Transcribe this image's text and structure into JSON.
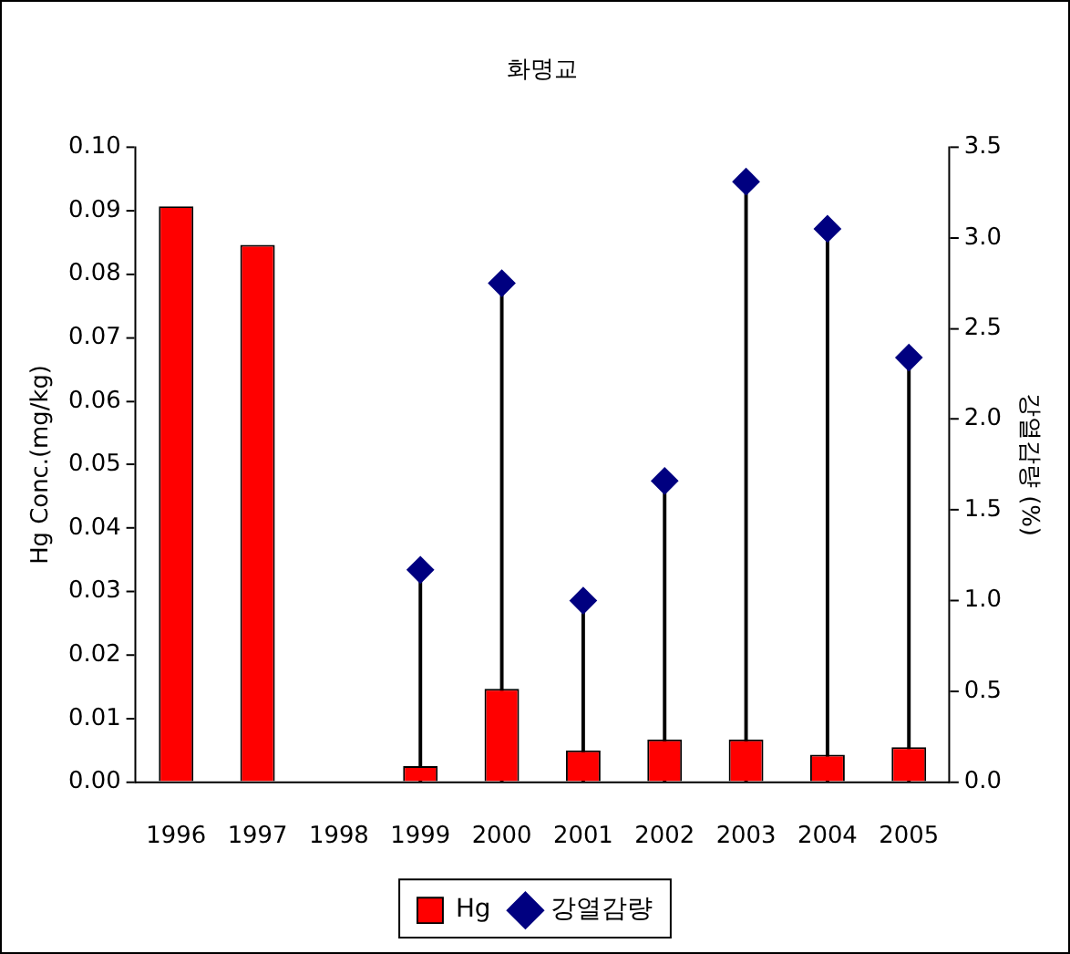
{
  "chart_data": {
    "type": "bar",
    "title": "화명교",
    "ylabel": "Hg Conc.(mg/kg)",
    "y2label": "강열감량 (%)",
    "categories": [
      "1996",
      "1997",
      "1998",
      "1999",
      "2000",
      "2001",
      "2002",
      "2003",
      "2004",
      "2005"
    ],
    "series": [
      {
        "name": "Hg",
        "color": "#ff0000",
        "values": [
          0.0907,
          0.0846,
          null,
          0.0025,
          0.0147,
          0.005,
          0.0067,
          0.0067,
          0.0043,
          0.0055
        ]
      },
      {
        "name": "강열감량",
        "type": "lollipop",
        "axis": "y2",
        "marker": "diamond",
        "color": "#000080",
        "values": [
          null,
          null,
          null,
          1.17,
          2.75,
          1.0,
          1.66,
          3.31,
          3.05,
          2.34
        ]
      }
    ],
    "ylim": [
      0,
      0.1
    ],
    "yticks": [
      {
        "value": 0,
        "label": "0.00"
      },
      {
        "value": 0.01,
        "label": "0.01"
      },
      {
        "value": 0.02,
        "label": "0.02"
      },
      {
        "value": 0.03,
        "label": "0.03"
      },
      {
        "value": 0.04,
        "label": "0.04"
      },
      {
        "value": 0.05,
        "label": "0.05"
      },
      {
        "value": 0.06,
        "label": "0.06"
      },
      {
        "value": 0.07,
        "label": "0.07"
      },
      {
        "value": 0.08,
        "label": "0.08"
      },
      {
        "value": 0.09,
        "label": "0.09"
      },
      {
        "value": 0.1,
        "label": "0.10"
      }
    ],
    "y2lim": [
      0,
      3.5
    ],
    "y2ticks": [
      {
        "value": 0,
        "label": "0.0"
      },
      {
        "value": 0.5,
        "label": "0.5"
      },
      {
        "value": 1,
        "label": "1.0"
      },
      {
        "value": 1.5,
        "label": "1.5"
      },
      {
        "value": 2,
        "label": "2.0"
      },
      {
        "value": 2.5,
        "label": "2.5"
      },
      {
        "value": 3,
        "label": "3.0"
      },
      {
        "value": 3.5,
        "label": "3.5"
      }
    ],
    "grid": false,
    "legend": "bottom"
  }
}
